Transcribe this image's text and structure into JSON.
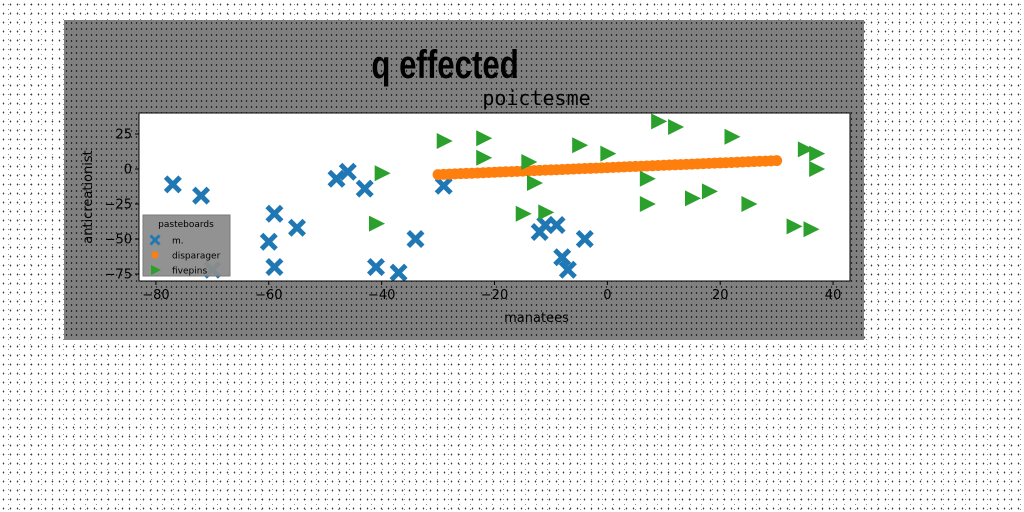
{
  "figure": {
    "suptitle": "q effected"
  },
  "chart_data": {
    "type": "scatter",
    "title": "poictesme",
    "xlabel": "manatees",
    "ylabel": "anticreationist",
    "xlim": [
      -83,
      43
    ],
    "ylim": [
      -80,
      40
    ],
    "xticks": [
      -80,
      -60,
      -40,
      -20,
      0,
      20,
      40
    ],
    "yticks": [
      25,
      0,
      -25,
      -50,
      -75
    ],
    "grid": false,
    "legend": {
      "title": "pasteboards",
      "placement": "lower-left"
    },
    "series": [
      {
        "name": "m.",
        "marker": "X",
        "color": "#1f77b4",
        "points": [
          [
            -77,
            -11
          ],
          [
            -72,
            -19
          ],
          [
            -70,
            -72
          ],
          [
            -59,
            -32
          ],
          [
            -60,
            -52
          ],
          [
            -59,
            -70
          ],
          [
            -55,
            -42
          ],
          [
            -48,
            -7
          ],
          [
            -46,
            -2
          ],
          [
            -43,
            -14
          ],
          [
            -41,
            -70
          ],
          [
            -37,
            -74
          ],
          [
            -34,
            -50
          ],
          [
            -29,
            -12
          ],
          [
            -12,
            -45
          ],
          [
            -11,
            -40
          ],
          [
            -9,
            -40
          ],
          [
            -8,
            -63
          ],
          [
            -7,
            -72
          ],
          [
            -4,
            -50
          ]
        ]
      },
      {
        "name": "disparager",
        "marker": "o",
        "color": "#ff7f0e",
        "x_range": [
          -30,
          30
        ],
        "y_range": [
          -4,
          6
        ],
        "count": 61
      },
      {
        "name": "fivepins",
        "marker": ">",
        "color": "#2ca02c",
        "points": [
          [
            -40,
            -3
          ],
          [
            -41,
            -39
          ],
          [
            -29,
            20
          ],
          [
            -22,
            22
          ],
          [
            -22,
            8
          ],
          [
            -15,
            -32
          ],
          [
            -14,
            5
          ],
          [
            -13,
            -10
          ],
          [
            -11,
            -31
          ],
          [
            -5,
            17
          ],
          [
            0,
            11
          ],
          [
            7,
            -7
          ],
          [
            7,
            -25
          ],
          [
            9,
            34
          ],
          [
            12,
            30
          ],
          [
            15,
            -21
          ],
          [
            18,
            -16
          ],
          [
            22,
            23
          ],
          [
            25,
            -25
          ],
          [
            33,
            -41
          ],
          [
            35,
            14
          ],
          [
            36,
            -43
          ],
          [
            37,
            11
          ],
          [
            37,
            0
          ]
        ]
      }
    ]
  }
}
